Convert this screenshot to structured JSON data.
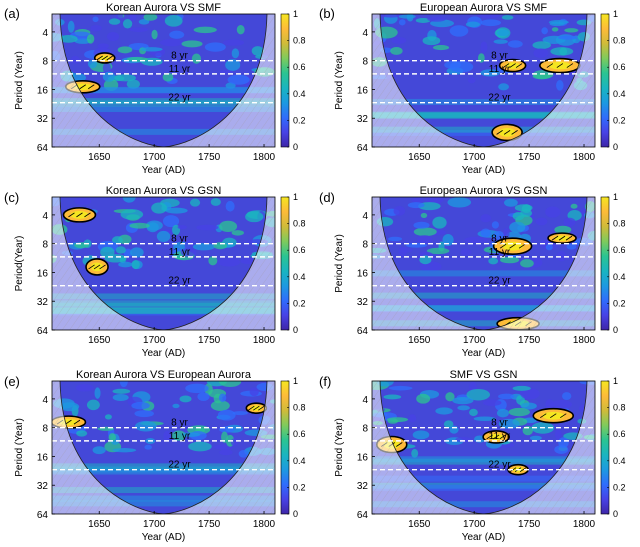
{
  "figure": {
    "colormap": [
      "#3e26a8",
      "#4742e6",
      "#2f6dfc",
      "#1c9ae0",
      "#1ab5c0",
      "#2bc492",
      "#7fcb5c",
      "#d0bb3a",
      "#fdbb39",
      "#f5e621"
    ],
    "line_labels": [
      "8 yr",
      "11 yr",
      "22 yr"
    ],
    "colorbar_ticks": [
      "0",
      "0.2",
      "0.4",
      "0.6",
      "0.8",
      "1"
    ]
  },
  "chart_data": [
    {
      "type": "heatmap",
      "panel_letter": "(a)",
      "title": "Korean Aurora VS SMF",
      "xlabel": "Year (AD)",
      "ylabel": "Period (Year)",
      "xlim": [
        1607,
        1810
      ],
      "x_ticks": [
        "1650",
        "1700",
        "1750",
        "1800"
      ],
      "ylim": [
        2.6,
        64
      ],
      "y_ticks": [
        "4",
        "8",
        "16",
        "32",
        "64"
      ],
      "reference_periods": [
        8,
        11,
        22
      ],
      "colorbar_range": [
        0,
        1
      ],
      "significant_regions": [
        {
          "year": 1655,
          "period": 7.5
        },
        {
          "year": 1635,
          "period": 15
        }
      ]
    },
    {
      "type": "heatmap",
      "panel_letter": "(b)",
      "title": "European Aurora VS SMF",
      "xlabel": "Year (AD)",
      "ylabel": "Period (Year)",
      "xlim": [
        1607,
        1810
      ],
      "x_ticks": [
        "1650",
        "1700",
        "1750",
        "1800"
      ],
      "ylim": [
        2.6,
        64
      ],
      "y_ticks": [
        "4",
        "8",
        "16",
        "32",
        "64"
      ],
      "reference_periods": [
        8,
        11,
        22
      ],
      "colorbar_range": [
        0,
        1
      ],
      "significant_regions": [
        {
          "year": 1735,
          "period": 9
        },
        {
          "year": 1778,
          "period": 9
        },
        {
          "year": 1730,
          "period": 45
        }
      ]
    },
    {
      "type": "heatmap",
      "panel_letter": "(c)",
      "title": "Korean Aurora VS GSN",
      "xlabel": "Year (AD)",
      "ylabel": "Period(Year)",
      "xlim": [
        1607,
        1810
      ],
      "x_ticks": [
        "1650",
        "1700",
        "1750",
        "1800"
      ],
      "ylim": [
        2.6,
        64
      ],
      "y_ticks": [
        "4",
        "8",
        "16",
        "32",
        "64"
      ],
      "reference_periods": [
        8,
        11,
        22
      ],
      "colorbar_range": [
        0,
        1
      ],
      "significant_regions": [
        {
          "year": 1632,
          "period": 4
        },
        {
          "year": 1648,
          "period": 14
        }
      ]
    },
    {
      "type": "heatmap",
      "panel_letter": "(d)",
      "title": "European Aurora VS GSN",
      "xlabel": "Year (AD)",
      "ylabel": "Period (Year)",
      "xlim": [
        1607,
        1810
      ],
      "x_ticks": [
        "1650",
        "1700",
        "1750",
        "1800"
      ],
      "ylim": [
        2.6,
        64
      ],
      "y_ticks": [
        "4",
        "8",
        "16",
        "32",
        "64"
      ],
      "reference_periods": [
        8,
        11,
        22
      ],
      "colorbar_range": [
        0,
        1
      ],
      "significant_regions": [
        {
          "year": 1735,
          "period": 8.5
        },
        {
          "year": 1780,
          "period": 7
        },
        {
          "year": 1740,
          "period": 55
        }
      ]
    },
    {
      "type": "heatmap",
      "panel_letter": "(e)",
      "title": "Korean Aurora VS European Aurora",
      "xlabel": "Year (AD)",
      "ylabel": "Period (Year)",
      "xlim": [
        1607,
        1810
      ],
      "x_ticks": [
        "1650",
        "1700",
        "1750",
        "1800"
      ],
      "ylim": [
        2.6,
        64
      ],
      "y_ticks": [
        "4",
        "8",
        "16",
        "32",
        "64"
      ],
      "reference_periods": [
        8,
        11,
        22
      ],
      "colorbar_range": [
        0,
        1
      ],
      "significant_regions": [
        {
          "year": 1793,
          "period": 5
        },
        {
          "year": 1622,
          "period": 7
        }
      ]
    },
    {
      "type": "heatmap",
      "panel_letter": "(f)",
      "title": "SMF VS GSN",
      "xlabel": "Year (AD)",
      "ylabel": "Period (Year)",
      "xlim": [
        1607,
        1810
      ],
      "x_ticks": [
        "1650",
        "1700",
        "1750",
        "1800"
      ],
      "ylim": [
        2.6,
        64
      ],
      "y_ticks": [
        "4",
        "8",
        "16",
        "32",
        "64"
      ],
      "reference_periods": [
        8,
        11,
        22
      ],
      "colorbar_range": [
        0,
        1
      ],
      "significant_regions": [
        {
          "year": 1720,
          "period": 10
        },
        {
          "year": 1772,
          "period": 6
        },
        {
          "year": 1625,
          "period": 12
        },
        {
          "year": 1740,
          "period": 22
        }
      ]
    }
  ]
}
